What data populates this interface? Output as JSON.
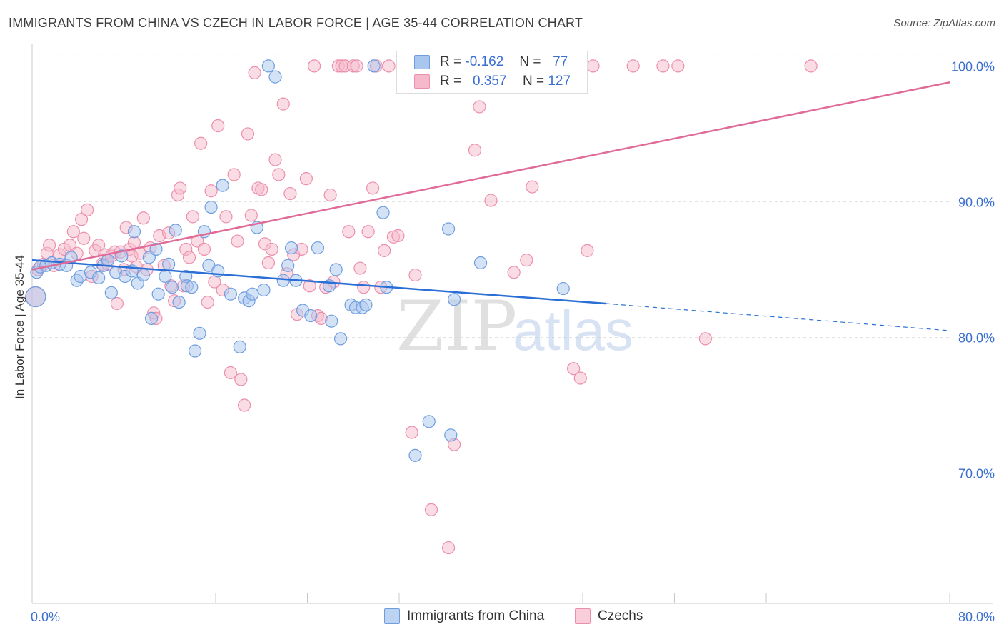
{
  "title": "IMMIGRANTS FROM CHINA VS CZECH IN LABOR FORCE | AGE 35-44 CORRELATION CHART",
  "source": "Source: ZipAtlas.com",
  "watermark": {
    "zip": "ZIP",
    "atlas": "atlas"
  },
  "legend_box": {
    "rows": [
      {
        "r_label": "R =",
        "r_value": "-0.162",
        "n_label": "N =",
        "n_value": "77"
      },
      {
        "r_label": "R =",
        "r_value": "0.357",
        "n_label": "N =",
        "n_value": "127"
      }
    ]
  },
  "legend_bottom": [
    "Immigrants from China",
    "Czechs"
  ],
  "colors": {
    "china_fill": "#a9c6ee",
    "china_stroke": "#6f9de0",
    "china_line": "#2a6fd6",
    "czech_fill": "#f6b9cc",
    "czech_stroke": "#ec8fac",
    "czech_line": "#e06b98",
    "axis_text": "#3a6fd0",
    "grid": "#e2e2e2"
  },
  "chart_data": {
    "type": "scatter",
    "title": "IMMIGRANTS FROM CHINA VS CZECH IN LABOR FORCE | AGE 35-44 CORRELATION CHART",
    "xlabel": "",
    "ylabel": "In Labor Force | Age 35-44",
    "xlim": [
      0,
      80
    ],
    "ylim": [
      60.4,
      101.6
    ],
    "x_tick_labels": [
      "0.0%",
      "80.0%"
    ],
    "y_ticks": [
      70,
      80,
      90,
      100
    ],
    "y_tick_labels": [
      "70.0%",
      "80.0%",
      "90.0%",
      "100.0%"
    ],
    "series": [
      {
        "name": "Immigrants from China",
        "R": -0.162,
        "N": 77,
        "trend": {
          "x": [
            0,
            50
          ],
          "y": [
            85.7,
            82.5
          ],
          "dashed_to": [
            80,
            80.5
          ]
        },
        "points": [
          [
            0.3,
            83.0
          ],
          [
            0.4,
            84.8
          ],
          [
            0.7,
            85.2
          ],
          [
            1.2,
            85.3
          ],
          [
            1.7,
            85.5
          ],
          [
            2.4,
            85.4
          ],
          [
            3.0,
            85.3
          ],
          [
            3.4,
            85.9
          ],
          [
            3.9,
            84.2
          ],
          [
            4.2,
            84.5
          ],
          [
            5.1,
            84.8
          ],
          [
            5.8,
            84.4
          ],
          [
            6.2,
            85.3
          ],
          [
            6.6,
            85.7
          ],
          [
            6.9,
            83.3
          ],
          [
            7.3,
            84.8
          ],
          [
            7.8,
            86.0
          ],
          [
            8.1,
            84.5
          ],
          [
            8.7,
            84.9
          ],
          [
            8.9,
            87.8
          ],
          [
            9.2,
            84.0
          ],
          [
            9.7,
            84.6
          ],
          [
            10.2,
            85.9
          ],
          [
            10.4,
            81.4
          ],
          [
            10.8,
            86.5
          ],
          [
            11.0,
            83.2
          ],
          [
            11.6,
            84.5
          ],
          [
            11.9,
            85.4
          ],
          [
            12.2,
            83.7
          ],
          [
            12.5,
            87.9
          ],
          [
            12.8,
            82.6
          ],
          [
            13.4,
            84.5
          ],
          [
            13.5,
            83.8
          ],
          [
            13.9,
            83.7
          ],
          [
            14.2,
            79.0
          ],
          [
            14.6,
            80.3
          ],
          [
            15.0,
            87.8
          ],
          [
            15.4,
            85.3
          ],
          [
            15.6,
            89.6
          ],
          [
            16.2,
            84.9
          ],
          [
            16.6,
            91.2
          ],
          [
            17.3,
            83.2
          ],
          [
            18.1,
            79.3
          ],
          [
            18.5,
            82.9
          ],
          [
            18.9,
            82.7
          ],
          [
            19.2,
            83.2
          ],
          [
            19.6,
            88.1
          ],
          [
            20.2,
            83.5
          ],
          [
            20.6,
            100.0
          ],
          [
            21.2,
            99.2
          ],
          [
            21.9,
            84.2
          ],
          [
            22.3,
            85.3
          ],
          [
            22.6,
            86.6
          ],
          [
            23.0,
            84.2
          ],
          [
            23.6,
            82.0
          ],
          [
            24.3,
            81.6
          ],
          [
            24.9,
            86.6
          ],
          [
            25.9,
            83.8
          ],
          [
            26.1,
            81.2
          ],
          [
            26.5,
            85.0
          ],
          [
            26.9,
            79.9
          ],
          [
            27.8,
            82.4
          ],
          [
            28.2,
            82.2
          ],
          [
            28.8,
            82.2
          ],
          [
            29.1,
            82.4
          ],
          [
            29.8,
            100.0
          ],
          [
            30.6,
            89.2
          ],
          [
            30.9,
            83.7
          ],
          [
            33.4,
            71.3
          ],
          [
            34.6,
            73.8
          ],
          [
            35.2,
            100.0
          ],
          [
            36.3,
            88.0
          ],
          [
            36.5,
            72.8
          ],
          [
            36.8,
            82.8
          ],
          [
            39.1,
            85.5
          ],
          [
            40.2,
            100.0
          ],
          [
            46.3,
            83.6
          ]
        ]
      },
      {
        "name": "Czechs",
        "R": 0.357,
        "N": 127,
        "trend": {
          "x": [
            0,
            80
          ],
          "y": [
            85.0,
            98.8
          ]
        },
        "points": [
          [
            0.3,
            83.0
          ],
          [
            0.5,
            85.0
          ],
          [
            1.0,
            85.4
          ],
          [
            1.3,
            86.2
          ],
          [
            1.5,
            86.8
          ],
          [
            1.9,
            85.3
          ],
          [
            2.4,
            86.1
          ],
          [
            2.8,
            86.5
          ],
          [
            3.3,
            86.8
          ],
          [
            3.6,
            87.8
          ],
          [
            3.9,
            86.2
          ],
          [
            4.3,
            88.7
          ],
          [
            4.5,
            87.3
          ],
          [
            4.8,
            89.4
          ],
          [
            5.2,
            84.5
          ],
          [
            5.5,
            86.4
          ],
          [
            5.8,
            86.8
          ],
          [
            6.1,
            85.4
          ],
          [
            6.3,
            86.1
          ],
          [
            6.6,
            85.4
          ],
          [
            6.9,
            86.0
          ],
          [
            7.2,
            86.3
          ],
          [
            7.4,
            82.5
          ],
          [
            7.7,
            86.3
          ],
          [
            8.0,
            85.0
          ],
          [
            8.2,
            88.1
          ],
          [
            8.5,
            86.5
          ],
          [
            8.7,
            86.0
          ],
          [
            8.9,
            87.0
          ],
          [
            9.1,
            85.2
          ],
          [
            9.4,
            86.2
          ],
          [
            9.7,
            88.8
          ],
          [
            10.0,
            85.0
          ],
          [
            10.3,
            86.6
          ],
          [
            10.6,
            81.8
          ],
          [
            10.8,
            81.4
          ],
          [
            11.1,
            87.5
          ],
          [
            11.5,
            85.3
          ],
          [
            11.9,
            87.7
          ],
          [
            12.1,
            83.8
          ],
          [
            12.4,
            82.7
          ],
          [
            12.7,
            90.5
          ],
          [
            12.9,
            91.0
          ],
          [
            13.2,
            83.8
          ],
          [
            13.4,
            86.5
          ],
          [
            13.7,
            85.9
          ],
          [
            14.0,
            88.9
          ],
          [
            14.4,
            87.1
          ],
          [
            14.7,
            94.3
          ],
          [
            15.0,
            86.5
          ],
          [
            15.3,
            82.6
          ],
          [
            15.6,
            90.8
          ],
          [
            15.9,
            84.1
          ],
          [
            16.2,
            95.6
          ],
          [
            16.6,
            83.5
          ],
          [
            16.9,
            88.9
          ],
          [
            17.3,
            77.4
          ],
          [
            17.6,
            92.0
          ],
          [
            17.9,
            87.1
          ],
          [
            18.2,
            76.9
          ],
          [
            18.5,
            75.0
          ],
          [
            18.8,
            95.0
          ],
          [
            19.1,
            89.0
          ],
          [
            19.4,
            99.5
          ],
          [
            19.7,
            91.0
          ],
          [
            20.0,
            90.9
          ],
          [
            20.3,
            86.9
          ],
          [
            20.6,
            85.5
          ],
          [
            20.9,
            86.5
          ],
          [
            21.2,
            93.1
          ],
          [
            21.5,
            92.0
          ],
          [
            21.9,
            97.2
          ],
          [
            22.2,
            84.7
          ],
          [
            22.5,
            90.6
          ],
          [
            22.8,
            86.1
          ],
          [
            23.1,
            81.7
          ],
          [
            23.5,
            86.5
          ],
          [
            23.9,
            91.7
          ],
          [
            24.2,
            83.8
          ],
          [
            24.6,
            100.0
          ],
          [
            24.9,
            81.6
          ],
          [
            25.2,
            81.4
          ],
          [
            25.6,
            83.7
          ],
          [
            26.0,
            90.5
          ],
          [
            26.3,
            84.1
          ],
          [
            26.7,
            100.0
          ],
          [
            27.0,
            100.0
          ],
          [
            27.3,
            100.0
          ],
          [
            27.6,
            87.8
          ],
          [
            28.0,
            100.0
          ],
          [
            28.3,
            100.0
          ],
          [
            28.6,
            85.1
          ],
          [
            28.9,
            83.7
          ],
          [
            29.3,
            87.8
          ],
          [
            29.7,
            91.0
          ],
          [
            30.0,
            100.0
          ],
          [
            30.4,
            83.7
          ],
          [
            30.7,
            86.4
          ],
          [
            31.1,
            100.0
          ],
          [
            31.5,
            87.4
          ],
          [
            31.9,
            87.5
          ],
          [
            32.3,
            100.0
          ],
          [
            32.7,
            100.0
          ],
          [
            33.1,
            73.0
          ],
          [
            33.4,
            84.6
          ],
          [
            33.8,
            100.0
          ],
          [
            34.3,
            100.0
          ],
          [
            34.8,
            67.3
          ],
          [
            35.3,
            100.0
          ],
          [
            35.8,
            100.0
          ],
          [
            36.3,
            64.5
          ],
          [
            36.8,
            72.1
          ],
          [
            37.5,
            100.0
          ],
          [
            38.1,
            100.0
          ],
          [
            38.6,
            93.8
          ],
          [
            39.0,
            97.0
          ],
          [
            40.0,
            90.1
          ],
          [
            41.4,
            100.0
          ],
          [
            42.0,
            84.8
          ],
          [
            43.1,
            85.7
          ],
          [
            43.6,
            91.1
          ],
          [
            44.8,
            100.0
          ],
          [
            47.2,
            77.7
          ],
          [
            47.8,
            77.0
          ],
          [
            48.4,
            86.4
          ],
          [
            48.9,
            100.0
          ],
          [
            52.4,
            100.0
          ],
          [
            55.0,
            100.0
          ],
          [
            56.3,
            100.0
          ],
          [
            58.7,
            79.9
          ],
          [
            67.9,
            100.0
          ]
        ]
      }
    ]
  }
}
